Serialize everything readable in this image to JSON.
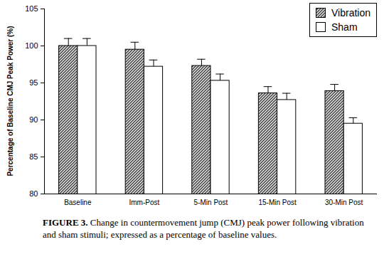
{
  "chart_data": {
    "type": "bar",
    "caption": "FIGURE 3. Change in countermovement jump (CMJ) peak power following vibration and sham stimuli; expressed as a percentage of baseline values.",
    "y_label": "Percentage of Baseline CMJ Peak Power (%)",
    "categories": [
      "Baseline",
      "Imm-Post",
      "5-Min Post",
      "15-Min Post",
      "30-Min Post"
    ],
    "series": [
      {
        "name": "Vibration",
        "color": "#4a4a4a",
        "values": [
          100,
          99.5,
          97.3,
          93.6,
          93.9
        ],
        "errors": [
          1.0,
          1.0,
          0.9,
          0.9,
          0.9
        ]
      },
      {
        "name": "Sham",
        "color": "#ffffff",
        "values": [
          100,
          97.2,
          95.3,
          92.7,
          89.5
        ],
        "errors": [
          1.0,
          0.9,
          0.9,
          0.9,
          0.8
        ]
      }
    ],
    "ylim": [
      80,
      105
    ],
    "yticks": [
      80,
      85,
      90,
      95,
      100,
      105
    ],
    "legend": "top-right"
  }
}
